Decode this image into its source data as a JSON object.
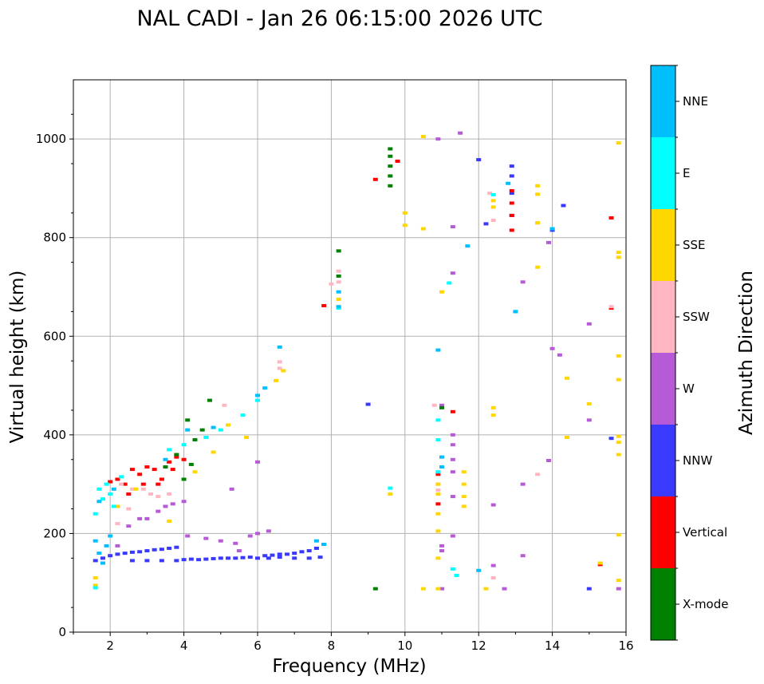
{
  "chart_data": {
    "type": "scatter",
    "title": "NAL CADI - Jan 26 06:15:00 2026 UTC",
    "xlabel": "Frequency (MHz)",
    "ylabel": "Virtual height (km)",
    "xlim": [
      1,
      16
    ],
    "ylim": [
      0,
      1120
    ],
    "xticks": [
      2,
      4,
      6,
      8,
      10,
      12,
      14,
      16
    ],
    "yticks": [
      0,
      200,
      400,
      600,
      800,
      1000
    ],
    "grid": true,
    "colorbar": {
      "label": "Azimuth Direction",
      "categories": [
        {
          "name": "X-mode",
          "color": "#008000"
        },
        {
          "name": "Vertical",
          "color": "#ff0000"
        },
        {
          "name": "NNW",
          "color": "#3a3aff"
        },
        {
          "name": "W",
          "color": "#b65ad6"
        },
        {
          "name": "SSW",
          "color": "#ffb6c1"
        },
        {
          "name": "SSE",
          "color": "#ffd700"
        },
        {
          "name": "E",
          "color": "#00ffff"
        },
        {
          "name": "NNE",
          "color": "#00bfff"
        }
      ]
    },
    "series": [
      {
        "name": "NNW",
        "color": "#3a3aff",
        "points": [
          [
            1.6,
            145
          ],
          [
            1.8,
            150
          ],
          [
            2.0,
            155
          ],
          [
            2.2,
            158
          ],
          [
            2.4,
            160
          ],
          [
            2.6,
            162
          ],
          [
            2.8,
            163
          ],
          [
            3.0,
            165
          ],
          [
            3.2,
            167
          ],
          [
            3.4,
            168
          ],
          [
            3.6,
            170
          ],
          [
            3.8,
            172
          ],
          [
            2.6,
            145
          ],
          [
            3.0,
            145
          ],
          [
            3.4,
            145
          ],
          [
            3.8,
            145
          ],
          [
            4.0,
            147
          ],
          [
            4.2,
            148
          ],
          [
            4.4,
            147
          ],
          [
            4.6,
            148
          ],
          [
            4.8,
            149
          ],
          [
            5.0,
            150
          ],
          [
            5.2,
            150
          ],
          [
            5.4,
            150
          ],
          [
            5.6,
            151
          ],
          [
            5.8,
            152
          ],
          [
            6.0,
            150
          ],
          [
            6.2,
            155
          ],
          [
            6.4,
            156
          ],
          [
            6.6,
            158
          ],
          [
            6.8,
            158
          ],
          [
            7.0,
            160
          ],
          [
            7.2,
            163
          ],
          [
            7.4,
            165
          ],
          [
            7.6,
            170
          ],
          [
            7.8,
            178
          ],
          [
            6.3,
            150
          ],
          [
            6.6,
            152
          ],
          [
            7.0,
            150
          ],
          [
            7.4,
            150
          ],
          [
            7.7,
            152
          ],
          [
            9.0,
            462
          ],
          [
            12.9,
            945
          ],
          [
            12.9,
            925
          ],
          [
            12.9,
            890
          ],
          [
            12.9,
            845
          ],
          [
            12.2,
            828
          ],
          [
            14.3,
            865
          ],
          [
            15.0,
            88
          ],
          [
            15.6,
            393
          ],
          [
            12.0,
            958
          ],
          [
            14.0,
            815
          ]
        ]
      },
      {
        "name": "W",
        "color": "#b65ad6",
        "points": [
          [
            2.2,
            175
          ],
          [
            2.5,
            215
          ],
          [
            2.8,
            230
          ],
          [
            3.0,
            230
          ],
          [
            3.3,
            245
          ],
          [
            3.5,
            255
          ],
          [
            3.7,
            260
          ],
          [
            4.0,
            265
          ],
          [
            4.1,
            195
          ],
          [
            4.6,
            190
          ],
          [
            5.0,
            185
          ],
          [
            5.4,
            180
          ],
          [
            5.8,
            195
          ],
          [
            6.0,
            200
          ],
          [
            6.3,
            205
          ],
          [
            5.3,
            290
          ],
          [
            5.5,
            165
          ],
          [
            6.0,
            345
          ],
          [
            11.0,
            460
          ],
          [
            11.3,
            400
          ],
          [
            11.3,
            380
          ],
          [
            11.3,
            350
          ],
          [
            11.3,
            325
          ],
          [
            11.3,
            275
          ],
          [
            11.3,
            195
          ],
          [
            11.0,
            165
          ],
          [
            11.0,
            175
          ],
          [
            11.3,
            822
          ],
          [
            11.3,
            728
          ],
          [
            11.5,
            1012
          ],
          [
            10.9,
            1000
          ],
          [
            13.2,
            710
          ],
          [
            13.9,
            790
          ],
          [
            14.0,
            575
          ],
          [
            14.2,
            562
          ],
          [
            15.0,
            625
          ],
          [
            15.0,
            430
          ],
          [
            13.2,
            300
          ],
          [
            12.4,
            258
          ],
          [
            12.4,
            135
          ],
          [
            12.7,
            88
          ],
          [
            13.2,
            155
          ],
          [
            13.9,
            348
          ],
          [
            15.8,
            88
          ],
          [
            11.0,
            88
          ]
        ]
      },
      {
        "name": "Vertical",
        "color": "#ff0000",
        "points": [
          [
            2.0,
            305
          ],
          [
            2.2,
            310
          ],
          [
            2.4,
            300
          ],
          [
            2.6,
            330
          ],
          [
            2.8,
            320
          ],
          [
            3.0,
            335
          ],
          [
            3.2,
            330
          ],
          [
            3.4,
            310
          ],
          [
            3.6,
            345
          ],
          [
            3.8,
            355
          ],
          [
            4.0,
            350
          ],
          [
            2.5,
            280
          ],
          [
            2.9,
            300
          ],
          [
            3.3,
            300
          ],
          [
            3.7,
            330
          ],
          [
            12.9,
            895
          ],
          [
            12.9,
            870
          ],
          [
            12.9,
            845
          ],
          [
            12.9,
            815
          ],
          [
            9.2,
            918
          ],
          [
            9.8,
            955
          ],
          [
            15.6,
            840
          ],
          [
            15.6,
            657
          ],
          [
            11.3,
            447
          ],
          [
            10.9,
            320
          ],
          [
            10.9,
            260
          ],
          [
            15.3,
            137
          ],
          [
            7.8,
            662
          ]
        ]
      },
      {
        "name": "X-mode",
        "color": "#008000",
        "points": [
          [
            3.5,
            335
          ],
          [
            3.8,
            360
          ],
          [
            4.0,
            310
          ],
          [
            4.2,
            340
          ],
          [
            4.3,
            390
          ],
          [
            4.5,
            410
          ],
          [
            4.1,
            430
          ],
          [
            4.7,
            470
          ],
          [
            8.2,
            773
          ],
          [
            8.2,
            722
          ],
          [
            9.6,
            980
          ],
          [
            9.6,
            965
          ],
          [
            9.6,
            945
          ],
          [
            9.6,
            925
          ],
          [
            9.6,
            905
          ],
          [
            9.2,
            88
          ],
          [
            11.0,
            455
          ]
        ]
      },
      {
        "name": "SSW",
        "color": "#ffb6c1",
        "points": [
          [
            2.3,
            300
          ],
          [
            2.6,
            290
          ],
          [
            2.9,
            290
          ],
          [
            3.1,
            280
          ],
          [
            3.3,
            275
          ],
          [
            3.6,
            280
          ],
          [
            2.2,
            220
          ],
          [
            2.5,
            250
          ],
          [
            5.1,
            460
          ],
          [
            6.6,
            548
          ],
          [
            6.6,
            535
          ],
          [
            10.9,
            300
          ],
          [
            10.9,
            288
          ],
          [
            12.4,
            110
          ],
          [
            12.4,
            835
          ],
          [
            13.6,
            830
          ],
          [
            13.6,
            320
          ],
          [
            12.3,
            890
          ],
          [
            8.2,
            732
          ],
          [
            8.2,
            710
          ],
          [
            8.0,
            706
          ],
          [
            15.6,
            660
          ],
          [
            10.8,
            460
          ]
        ]
      },
      {
        "name": "SSE",
        "color": "#ffd700",
        "points": [
          [
            1.6,
            110
          ],
          [
            1.6,
            95
          ],
          [
            2.2,
            255
          ],
          [
            2.7,
            290
          ],
          [
            3.6,
            225
          ],
          [
            4.3,
            325
          ],
          [
            4.8,
            365
          ],
          [
            5.2,
            420
          ],
          [
            5.7,
            395
          ],
          [
            6.5,
            510
          ],
          [
            6.7,
            530
          ],
          [
            8.2,
            675
          ],
          [
            9.6,
            280
          ],
          [
            10.0,
            850
          ],
          [
            10.0,
            825
          ],
          [
            10.5,
            1005
          ],
          [
            10.5,
            818
          ],
          [
            10.9,
            300
          ],
          [
            10.9,
            280
          ],
          [
            10.9,
            240
          ],
          [
            10.9,
            205
          ],
          [
            10.9,
            150
          ],
          [
            10.9,
            88
          ],
          [
            10.5,
            88
          ],
          [
            11.0,
            690
          ],
          [
            11.6,
            325
          ],
          [
            11.6,
            300
          ],
          [
            11.6,
            275
          ],
          [
            11.6,
            255
          ],
          [
            12.2,
            88
          ],
          [
            12.4,
            455
          ],
          [
            12.4,
            440
          ],
          [
            12.4,
            862
          ],
          [
            12.4,
            875
          ],
          [
            13.6,
            905
          ],
          [
            13.6,
            888
          ],
          [
            13.6,
            830
          ],
          [
            13.6,
            740
          ],
          [
            14.4,
            395
          ],
          [
            14.4,
            515
          ],
          [
            15.0,
            463
          ],
          [
            15.8,
            992
          ],
          [
            15.8,
            770
          ],
          [
            15.8,
            760
          ],
          [
            15.8,
            560
          ],
          [
            15.8,
            512
          ],
          [
            15.8,
            397
          ],
          [
            15.8,
            385
          ],
          [
            15.8,
            360
          ],
          [
            15.8,
            197
          ],
          [
            15.8,
            105
          ],
          [
            15.3,
            140
          ]
        ]
      },
      {
        "name": "E",
        "color": "#00ffff",
        "points": [
          [
            1.6,
            240
          ],
          [
            1.7,
            290
          ],
          [
            1.8,
            270
          ],
          [
            2.0,
            280
          ],
          [
            1.9,
            300
          ],
          [
            2.1,
            255
          ],
          [
            2.3,
            315
          ],
          [
            3.6,
            370
          ],
          [
            4.0,
            380
          ],
          [
            4.6,
            395
          ],
          [
            5.0,
            410
          ],
          [
            5.6,
            440
          ],
          [
            6.0,
            470
          ],
          [
            8.2,
            657
          ],
          [
            9.6,
            292
          ],
          [
            10.9,
            430
          ],
          [
            10.9,
            390
          ],
          [
            10.9,
            325
          ],
          [
            11.2,
            708
          ],
          [
            11.4,
            115
          ],
          [
            11.3,
            128
          ],
          [
            1.6,
            90
          ],
          [
            12.4,
            887
          ],
          [
            13.0,
            650
          ]
        ]
      },
      {
        "name": "NNE",
        "color": "#00bfff",
        "points": [
          [
            1.6,
            185
          ],
          [
            1.7,
            160
          ],
          [
            1.8,
            140
          ],
          [
            1.9,
            175
          ],
          [
            2.0,
            195
          ],
          [
            1.7,
            265
          ],
          [
            2.1,
            290
          ],
          [
            3.5,
            350
          ],
          [
            4.1,
            410
          ],
          [
            4.8,
            415
          ],
          [
            6.0,
            480
          ],
          [
            6.2,
            495
          ],
          [
            6.6,
            578
          ],
          [
            7.6,
            185
          ],
          [
            7.8,
            178
          ],
          [
            8.2,
            690
          ],
          [
            8.2,
            660
          ],
          [
            10.9,
            572
          ],
          [
            11.0,
            355
          ],
          [
            11.0,
            335
          ],
          [
            11.7,
            783
          ],
          [
            12.0,
            125
          ],
          [
            12.8,
            910
          ],
          [
            13.0,
            650
          ],
          [
            14.0,
            818
          ]
        ]
      }
    ]
  }
}
